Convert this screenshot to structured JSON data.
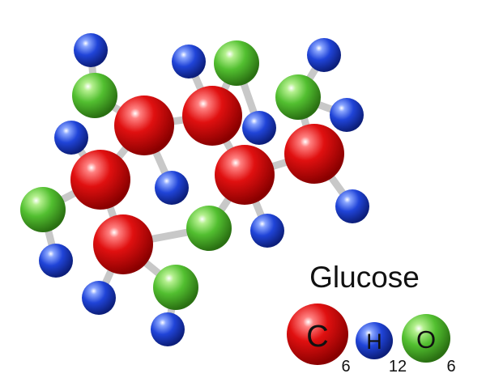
{
  "title": "Glucose",
  "colors": {
    "carbon": "#cc0000",
    "hydrogen": "#1a3fc8",
    "oxygen": "#44b02a",
    "bond": "#c8c8c8",
    "background": "#ffffff"
  },
  "formula": [
    {
      "element": "carbon",
      "symbol": "C",
      "count": "6"
    },
    {
      "element": "hydrogen",
      "symbol": "H",
      "count": "12"
    },
    {
      "element": "oxygen",
      "symbol": "O",
      "count": "6"
    }
  ],
  "molecule": {
    "carbon_atoms": 6,
    "hydrogen_atoms": 12,
    "oxygen_atoms": 6
  }
}
